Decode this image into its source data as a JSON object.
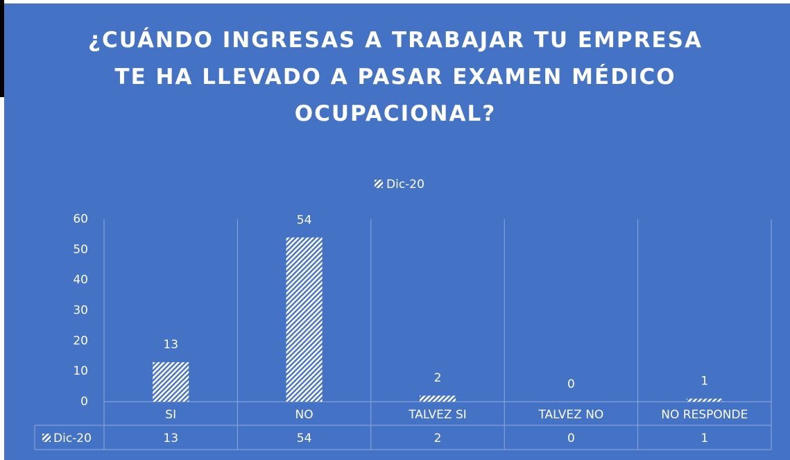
{
  "chart_data": {
    "type": "bar",
    "title": "¿CUÁNDO INGRESAS A TRABAJAR TU EMPRESA TE HA LLEVADO A PASAR EXAMEN MÉDICO OCUPACIONAL?",
    "categories": [
      "SI",
      "NO",
      "TALVEZ SI",
      "TALVEZ NO",
      "NO RESPONDE"
    ],
    "series": [
      {
        "name": "Dic-20",
        "color": "#ffffff",
        "values": [
          13,
          54,
          2,
          0,
          1
        ]
      }
    ],
    "ylim": [
      0,
      60
    ],
    "yticks": [
      0,
      10,
      20,
      30,
      40,
      50,
      60
    ],
    "grid": false,
    "legend": "top",
    "data_table": true
  }
}
